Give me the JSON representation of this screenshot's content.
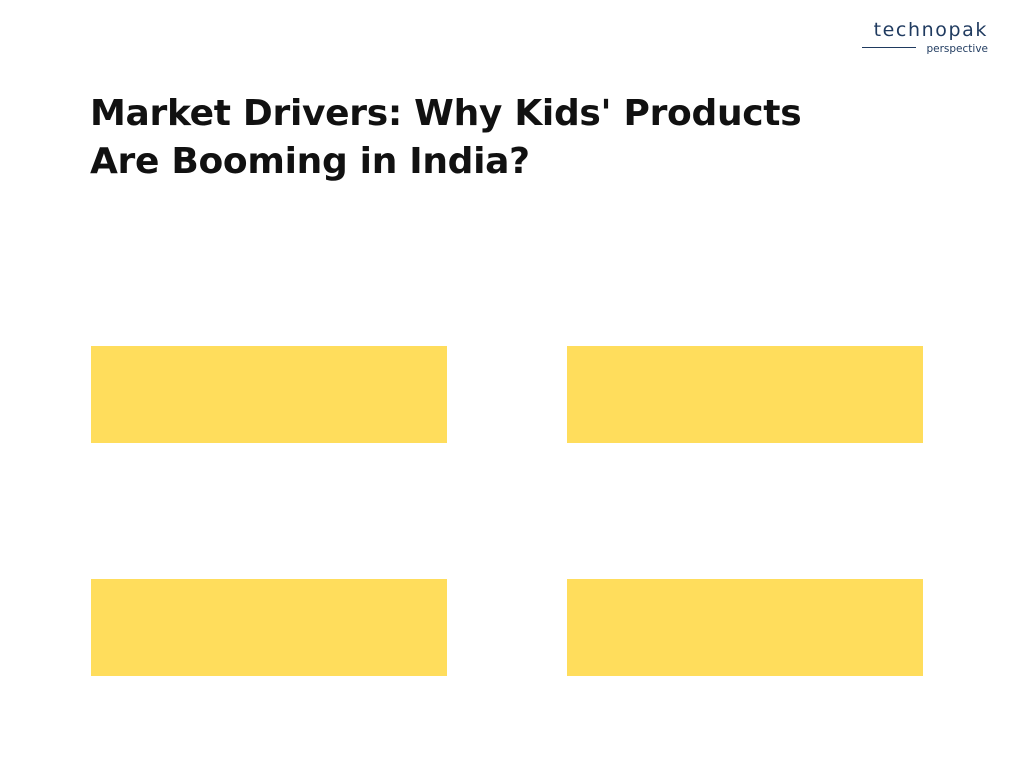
{
  "logo": {
    "name": "technopak",
    "tagline": "perspective"
  },
  "title": {
    "line1": "Market Drivers: Why Kids' Products",
    "line2": "Are Booming in India?"
  },
  "colors": {
    "box_fill": "#ffdd5c",
    "title_text": "#111111",
    "logo_text": "#1f3a5f",
    "background": "#ffffff"
  }
}
